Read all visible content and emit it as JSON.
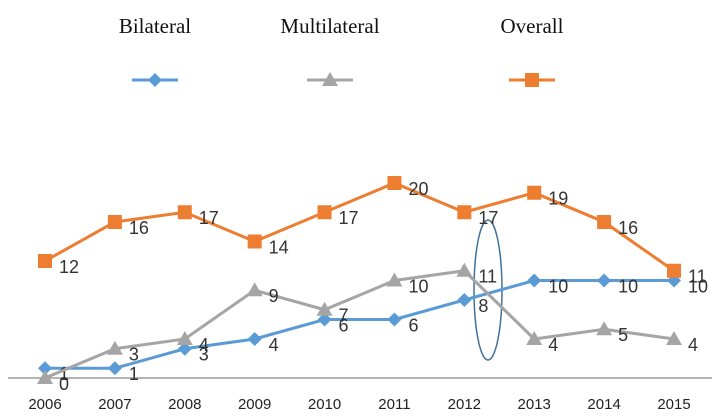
{
  "chart_data": {
    "type": "line",
    "categories": [
      "2006",
      "2007",
      "2008",
      "2009",
      "2010",
      "2011",
      "2012",
      "2013",
      "2014",
      "2015"
    ],
    "series": [
      {
        "name": "Bilateral",
        "color": "#5b9bd5",
        "marker": "diamond",
        "values": [
          1,
          1,
          3,
          4,
          6,
          6,
          8,
          10,
          10,
          10
        ]
      },
      {
        "name": "Multilateral",
        "color": "#a5a5a5",
        "marker": "triangle",
        "values": [
          0,
          3,
          4,
          9,
          7,
          10,
          11,
          4,
          5,
          4
        ]
      },
      {
        "name": "Overall",
        "color": "#ed7d31",
        "marker": "square",
        "values": [
          12,
          16,
          17,
          14,
          17,
          20,
          17,
          19,
          16,
          11
        ]
      }
    ],
    "ylim": [
      0,
      20
    ],
    "legend": "top"
  }
}
